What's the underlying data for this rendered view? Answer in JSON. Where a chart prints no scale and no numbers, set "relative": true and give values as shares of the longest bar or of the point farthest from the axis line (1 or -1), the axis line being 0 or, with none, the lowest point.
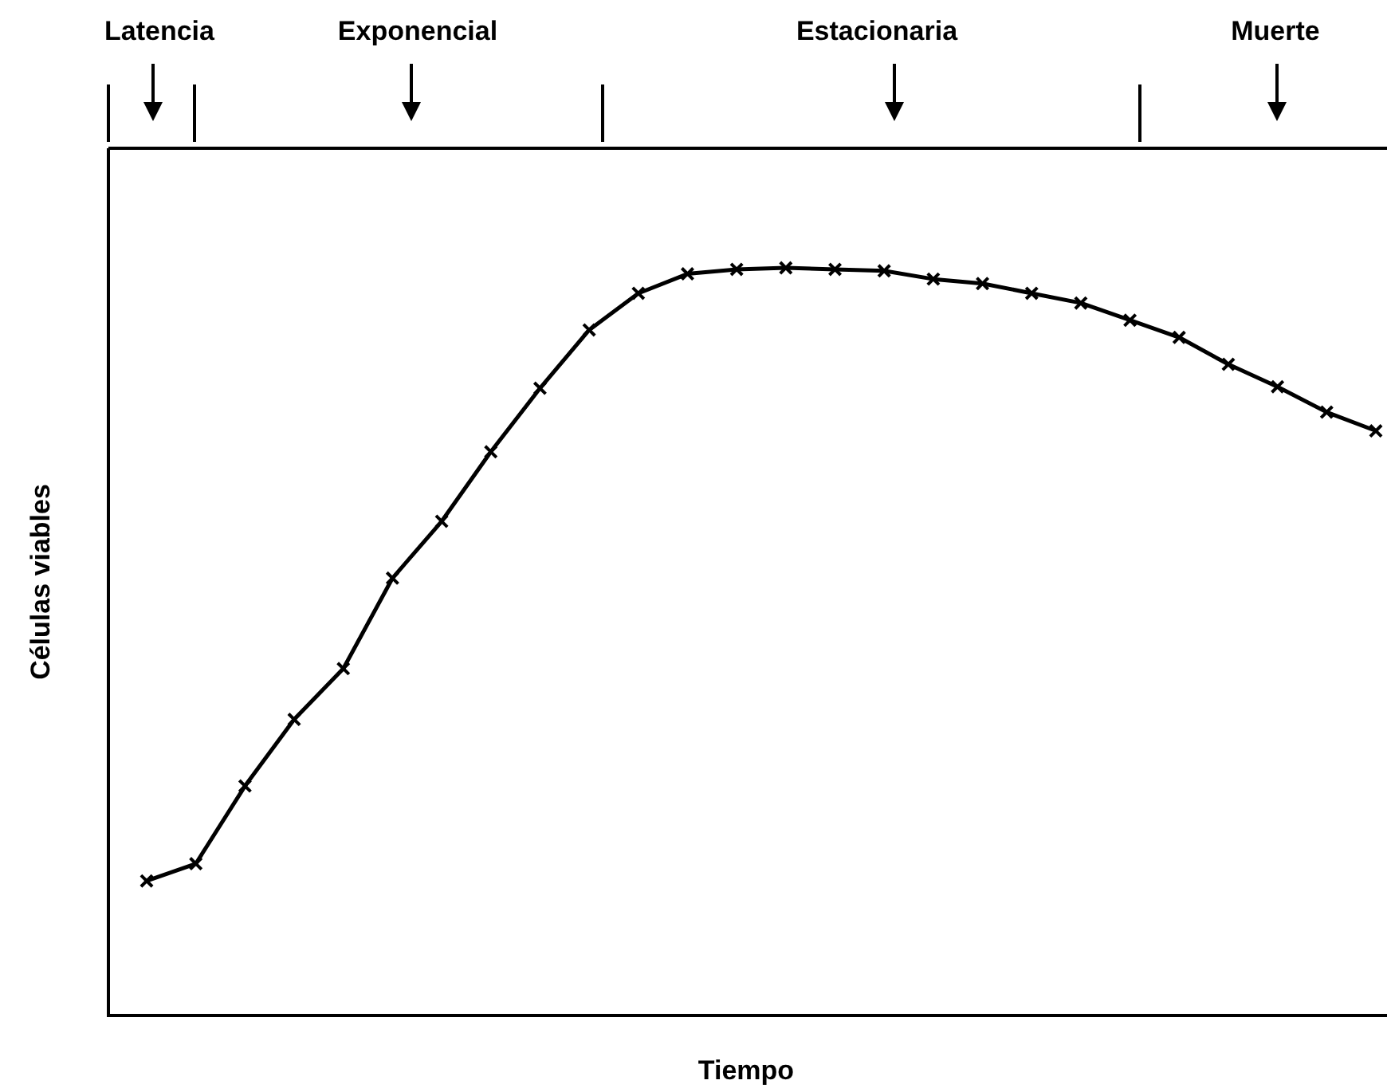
{
  "chart_data": {
    "type": "line",
    "xlabel": "Tiempo",
    "ylabel": "Células viables",
    "relative": true,
    "marker": "cross",
    "line_style": "solid",
    "legend": false,
    "annotations": [
      "Latencia",
      "Exponencial",
      "Estacionaria",
      "Muerte"
    ],
    "categories": [
      null,
      null,
      null,
      null,
      null,
      null,
      null,
      null,
      null,
      null,
      null,
      null,
      null,
      null,
      null,
      null,
      null,
      null,
      null,
      null,
      null,
      null,
      null,
      null,
      null,
      null
    ],
    "series": [
      {
        "color": "#000000",
        "values": [
          0.18,
          0.203,
          0.307,
          0.396,
          0.464,
          0.585,
          0.661,
          0.754,
          0.839,
          0.917,
          0.966,
          0.992,
          0.998,
          1,
          0.998,
          0.996,
          0.985,
          0.979,
          0.966,
          0.953,
          0.93,
          0.907,
          0.871,
          0.841,
          0.807,
          0.782
        ]
      }
    ]
  }
}
